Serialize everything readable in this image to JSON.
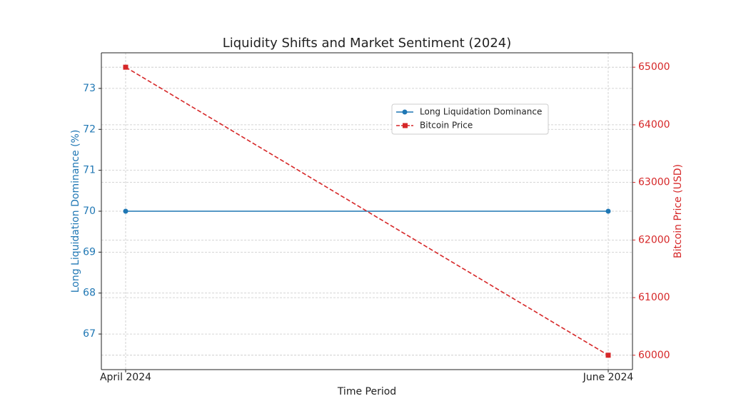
{
  "chart_data": {
    "type": "line",
    "title": "Liquidity Shifts and Market Sentiment (2024)",
    "x_label": "Time Period",
    "y_label": "Long Liquidation Dominance (%)",
    "y2_label": "Bitcoin Price (USD)",
    "categories": [
      "April 2024",
      "June 2024"
    ],
    "series": [
      {
        "name": "Long Liquidation Dominance",
        "color": "#1f77b4",
        "values": [
          70,
          70
        ],
        "marker": "circle",
        "linestyle": "solid"
      },
      {
        "name": "Bitcoin Price",
        "color": "#d62728",
        "values": [
          65000,
          60000
        ],
        "axis": "y2",
        "marker": "square",
        "linestyle": "dashed"
      }
    ],
    "ylim": [
      66.13,
      73.87
    ],
    "yticks": [
      67,
      68,
      69,
      70,
      71,
      72,
      73
    ],
    "y2lim": [
      59750,
      65250
    ],
    "y2ticks": [
      60000,
      61000,
      62000,
      63000,
      64000,
      65000
    ],
    "grid": true,
    "legend": "upper-right"
  }
}
